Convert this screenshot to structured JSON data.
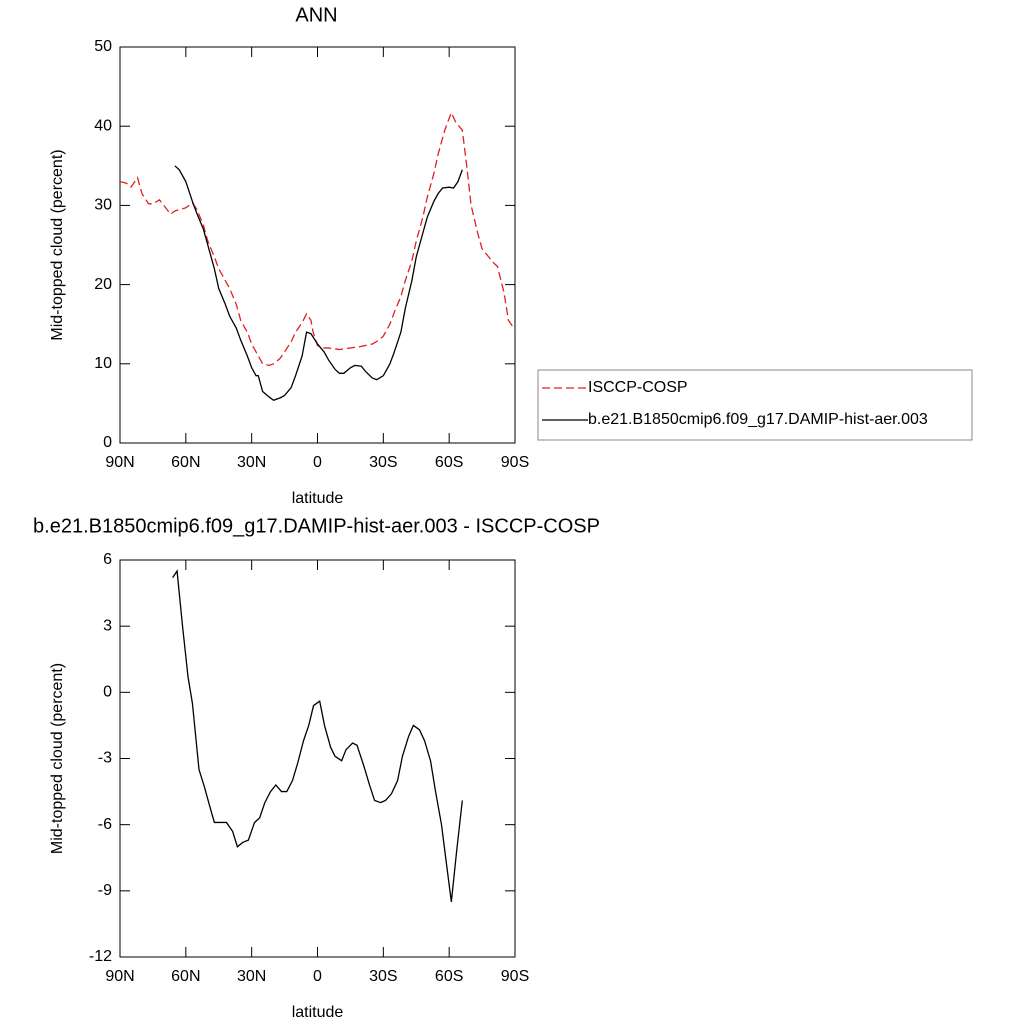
{
  "chart_data": [
    {
      "type": "line",
      "title": "ANN",
      "xlabel": "latitude",
      "ylabel": "Mid-topped cloud (percent)",
      "xlim": [
        90,
        -90
      ],
      "ylim": [
        0,
        50
      ],
      "xticks": [
        {
          "value": 90,
          "label": "90N"
        },
        {
          "value": 60,
          "label": "60N"
        },
        {
          "value": 30,
          "label": "30N"
        },
        0,
        {
          "value": -30,
          "label": "30S"
        },
        {
          "value": -60,
          "label": "60S"
        },
        {
          "value": -90,
          "label": "90S"
        }
      ],
      "yticks": [
        0,
        10,
        20,
        30,
        40,
        50
      ],
      "legend": "right",
      "series": [
        {
          "name": "ISCCP-COSP",
          "color": "#e02020",
          "dashed": true,
          "x": [
            90,
            87,
            85,
            82,
            80,
            77,
            75,
            72,
            70,
            67,
            65,
            60,
            57,
            55,
            52,
            50,
            47,
            45,
            40,
            37,
            35,
            32,
            30,
            27,
            25,
            22,
            20,
            17,
            15,
            12,
            10,
            7,
            5,
            3,
            2,
            0,
            -3,
            -5,
            -10,
            -15,
            -20,
            -25,
            -28,
            -30,
            -33,
            -35,
            -38,
            -40,
            -43,
            -45,
            -48,
            -50,
            -53,
            -55,
            -58,
            -60,
            -61,
            -63,
            -66,
            -68,
            -70,
            -73,
            -75,
            -78,
            -80,
            -82,
            -85,
            -87,
            -90
          ],
          "values": [
            33,
            32.8,
            32.3,
            33.5,
            31.5,
            30.2,
            30.2,
            30.7,
            30,
            28.9,
            29.3,
            29.7,
            30.3,
            29.5,
            27.5,
            25.5,
            23.5,
            22,
            19.5,
            17.5,
            15.5,
            14,
            12.5,
            11,
            10,
            9.8,
            10,
            10.7,
            11.5,
            12.8,
            14,
            15.2,
            16.3,
            15.5,
            14,
            12.3,
            12,
            12,
            11.8,
            12,
            12.2,
            12.5,
            13,
            13.5,
            15,
            16.5,
            18.5,
            20.5,
            23,
            25.5,
            28.5,
            31,
            34,
            36.5,
            39.5,
            41,
            41.7,
            40.5,
            39.5,
            35,
            30,
            26.5,
            24.5,
            23.5,
            22.8,
            22.3,
            19,
            15.5,
            14.3
          ]
        },
        {
          "name": "b.e21.B1850cmip6.f09_g17.DAMIP-hist-aer.003",
          "color": "#000000",
          "dashed": false,
          "x": [
            65,
            63,
            60,
            57,
            55,
            52,
            50,
            47,
            45,
            42,
            40,
            37,
            35,
            32,
            30,
            28,
            27,
            25,
            22,
            20,
            17,
            15,
            12,
            10,
            7,
            5,
            3,
            0,
            -3,
            -5,
            -8,
            -10,
            -12,
            -15,
            -17,
            -20,
            -22,
            -25,
            -27,
            -30,
            -33,
            -35,
            -38,
            -40,
            -43,
            -45,
            -48,
            -50,
            -53,
            -55,
            -57,
            -60,
            -62,
            -64,
            -66
          ],
          "values": [
            35,
            34.5,
            33,
            30.5,
            29,
            27,
            25,
            22,
            19.5,
            17.5,
            16,
            14.5,
            13,
            11,
            9.5,
            8.5,
            8.5,
            6.5,
            5.8,
            5.4,
            5.7,
            6,
            7,
            8.5,
            11,
            14,
            13.8,
            12.5,
            11.5,
            10.5,
            9.3,
            8.8,
            8.8,
            9.5,
            9.8,
            9.7,
            9,
            8.2,
            8,
            8.5,
            10,
            11.5,
            14,
            17,
            20.5,
            23.5,
            26.5,
            28.5,
            30.5,
            31.5,
            32.2,
            32.3,
            32.2,
            33,
            34.5
          ]
        }
      ]
    },
    {
      "type": "line",
      "title": "b.e21.B1850cmip6.f09_g17.DAMIP-hist-aer.003 - ISCCP-COSP",
      "xlabel": "latitude",
      "ylabel": "Mid-topped cloud (percent)",
      "xlim": [
        90,
        -90
      ],
      "ylim": [
        -12,
        6
      ],
      "xticks": [
        {
          "value": 90,
          "label": "90N"
        },
        {
          "value": 60,
          "label": "60N"
        },
        {
          "value": 30,
          "label": "30N"
        },
        0,
        {
          "value": -30,
          "label": "30S"
        },
        {
          "value": -60,
          "label": "60S"
        },
        {
          "value": -90,
          "label": "90S"
        }
      ],
      "yticks": [
        -12,
        -9,
        -6,
        -3,
        0,
        3,
        6
      ],
      "series": [
        {
          "color": "#000000",
          "dashed": false,
          "x": [
            66,
            64,
            61.5,
            59,
            57,
            54,
            51.5,
            49,
            47,
            41.5,
            38.7,
            36.5,
            34,
            31.5,
            28.7,
            26.4,
            24,
            21.4,
            19,
            16.4,
            14,
            11.4,
            9,
            6.4,
            4,
            1.8,
            -1,
            -3.2,
            -6,
            -8,
            -11,
            -13,
            -16,
            -18,
            -21,
            -23.7,
            -26,
            -28.7,
            -31,
            -33.7,
            -36.5,
            -38.7,
            -41.5,
            -43.7,
            -46.5,
            -48.8,
            -51.5,
            -53.8,
            -56.5,
            -58.8,
            -61,
            -63.4,
            -66
          ],
          "values": [
            5.2,
            5.5,
            3,
            0.7,
            -0.5,
            -3.5,
            -4.3,
            -5.2,
            -5.9,
            -5.9,
            -6.3,
            -7,
            -6.8,
            -6.7,
            -5.9,
            -5.7,
            -5,
            -4.5,
            -4.2,
            -4.5,
            -4.5,
            -4,
            -3.2,
            -2.2,
            -1.5,
            -0.6,
            -0.4,
            -1.5,
            -2.5,
            -2.9,
            -3.1,
            -2.6,
            -2.3,
            -2.4,
            -3.3,
            -4.2,
            -4.9,
            -5,
            -4.9,
            -4.6,
            -4,
            -2.9,
            -2,
            -1.5,
            -1.7,
            -2.2,
            -3.1,
            -4.5,
            -6,
            -7.8,
            -9.5,
            -7.2,
            -4.9
          ]
        }
      ]
    }
  ]
}
